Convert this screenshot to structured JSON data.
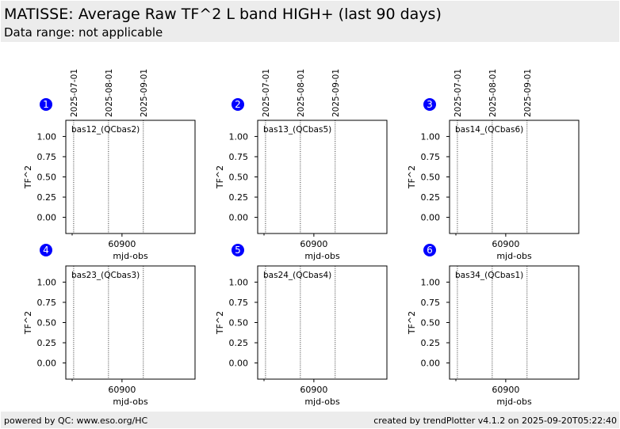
{
  "header": {
    "title": "MATISSE: Average Raw TF^2 L band HIGH+ (last 90 days)",
    "subtitle": "Data range: not applicable"
  },
  "footer": {
    "left": "powered by QC: www.eso.org/HC",
    "right": "created by trendPlotter v4.1.2 on 2025-09-20T05:22:40"
  },
  "colors": {
    "marker": "#0000ff",
    "header_bg": "#ececec",
    "axes": "#000000"
  },
  "chart_data": [
    {
      "type": "scatter",
      "marker_number": "1",
      "label": "bas12_(QCbas2)",
      "xlabel": "mjd-obs",
      "ylabel": "TF^2",
      "yticks": [
        "0.00",
        "0.25",
        "0.50",
        "0.75",
        "1.00"
      ],
      "ylim": [
        -0.2,
        1.2
      ],
      "xticks": [
        60900
      ],
      "xlim": [
        60850,
        60965
      ],
      "date_markers": [
        {
          "label": "2025-07-01",
          "mjd": 60857
        },
        {
          "label": "2025-08-01",
          "mjd": 60888
        },
        {
          "label": "2025-09-01",
          "mjd": 60919
        }
      ],
      "series": [
        {
          "values": []
        }
      ]
    },
    {
      "type": "scatter",
      "marker_number": "2",
      "label": "bas13_(QCbas5)",
      "xlabel": "mjd-obs",
      "ylabel": "TF^2",
      "yticks": [
        "0.00",
        "0.25",
        "0.50",
        "0.75",
        "1.00"
      ],
      "ylim": [
        -0.2,
        1.2
      ],
      "xticks": [
        60900
      ],
      "xlim": [
        60850,
        60965
      ],
      "date_markers": [
        {
          "label": "2025-07-01",
          "mjd": 60857
        },
        {
          "label": "2025-08-01",
          "mjd": 60888
        },
        {
          "label": "2025-09-01",
          "mjd": 60919
        }
      ],
      "series": [
        {
          "values": []
        }
      ]
    },
    {
      "type": "scatter",
      "marker_number": "3",
      "label": "bas14_(QCbas6)",
      "xlabel": "mjd-obs",
      "ylabel": "TF^2",
      "yticks": [
        "0.00",
        "0.25",
        "0.50",
        "0.75",
        "1.00"
      ],
      "ylim": [
        -0.2,
        1.2
      ],
      "xticks": [
        60900
      ],
      "xlim": [
        60850,
        60965
      ],
      "date_markers": [
        {
          "label": "2025-07-01",
          "mjd": 60857
        },
        {
          "label": "2025-08-01",
          "mjd": 60888
        },
        {
          "label": "2025-09-01",
          "mjd": 60919
        }
      ],
      "series": [
        {
          "values": []
        }
      ]
    },
    {
      "type": "scatter",
      "marker_number": "4",
      "label": "bas23_(QCbas3)",
      "xlabel": "mjd-obs",
      "ylabel": "TF^2",
      "yticks": [
        "0.00",
        "0.25",
        "0.50",
        "0.75",
        "1.00"
      ],
      "ylim": [
        -0.2,
        1.2
      ],
      "xticks": [
        60900
      ],
      "xlim": [
        60850,
        60965
      ],
      "date_markers": [
        {
          "mjd": 60857
        },
        {
          "mjd": 60888
        },
        {
          "mjd": 60919
        }
      ],
      "series": [
        {
          "values": []
        }
      ]
    },
    {
      "type": "scatter",
      "marker_number": "5",
      "label": "bas24_(QCbas4)",
      "xlabel": "mjd-obs",
      "ylabel": "TF^2",
      "yticks": [
        "0.00",
        "0.25",
        "0.50",
        "0.75",
        "1.00"
      ],
      "ylim": [
        -0.2,
        1.2
      ],
      "xticks": [
        60900
      ],
      "xlim": [
        60850,
        60965
      ],
      "date_markers": [
        {
          "mjd": 60857
        },
        {
          "mjd": 60888
        },
        {
          "mjd": 60919
        }
      ],
      "series": [
        {
          "values": []
        }
      ]
    },
    {
      "type": "scatter",
      "marker_number": "6",
      "label": "bas34_(QCbas1)",
      "xlabel": "mjd-obs",
      "ylabel": "TF^2",
      "yticks": [
        "0.00",
        "0.25",
        "0.50",
        "0.75",
        "1.00"
      ],
      "ylim": [
        -0.2,
        1.2
      ],
      "xticks": [
        60900
      ],
      "xlim": [
        60850,
        60965
      ],
      "date_markers": [
        {
          "mjd": 60857
        },
        {
          "mjd": 60888
        },
        {
          "mjd": 60919
        }
      ],
      "series": [
        {
          "values": []
        }
      ]
    }
  ]
}
